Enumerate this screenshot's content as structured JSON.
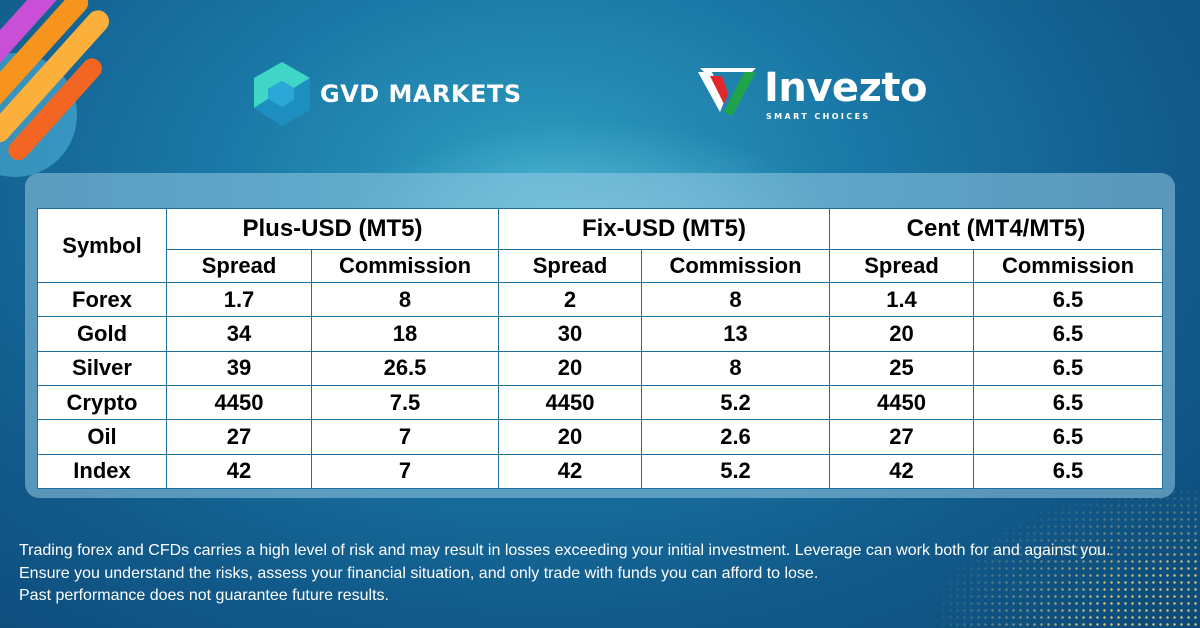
{
  "brand_left": {
    "name": "GVD MARKETS"
  },
  "brand_right": {
    "name": "Invezto",
    "tagline": "SMART CHOICES"
  },
  "table": {
    "symbol_header": "Symbol",
    "groups": [
      {
        "title": "Plus-USD (MT5)",
        "spread": "Spread",
        "commission": "Commission"
      },
      {
        "title": "Fix-USD (MT5)",
        "spread": "Spread",
        "commission": "Commission"
      },
      {
        "title": "Cent (MT4/MT5)",
        "spread": "Spread",
        "commission": "Commission"
      }
    ],
    "rows": [
      {
        "symbol": "Forex",
        "values": [
          "1.7",
          "8",
          "2",
          "8",
          "1.4",
          "6.5"
        ]
      },
      {
        "symbol": "Gold",
        "values": [
          "34",
          "18",
          "30",
          "13",
          "20",
          "6.5"
        ]
      },
      {
        "symbol": "Silver",
        "values": [
          "39",
          "26.5",
          "20",
          "8",
          "25",
          "6.5"
        ]
      },
      {
        "symbol": "Crypto",
        "values": [
          "4450",
          "7.5",
          "4450",
          "5.2",
          "4450",
          "6.5"
        ]
      },
      {
        "symbol": "Oil",
        "values": [
          "27",
          "7",
          "20",
          "2.6",
          "27",
          "6.5"
        ]
      },
      {
        "symbol": "Index",
        "values": [
          "42",
          "7",
          "42",
          "5.2",
          "42",
          "6.5"
        ]
      }
    ]
  },
  "disclaimer": [
    "Trading forex and CFDs carries a high level of risk and may result in losses exceeding your initial investment. Leverage can work both for and against you.",
    "Ensure you understand the risks, assess your financial situation, and only trade with funds you can afford to lose.",
    "Past performance does not guarantee future results."
  ],
  "colors": {
    "background": "#1a78a6",
    "table_border": "#1f6fa0",
    "invezto_green": "#1fa44a",
    "invezto_red": "#e2262c",
    "gvd_teal": "#26c6c6"
  },
  "icons": [
    "gvd-logo-icon",
    "invezto-logo-icon",
    "decorative-stripes-icon"
  ]
}
